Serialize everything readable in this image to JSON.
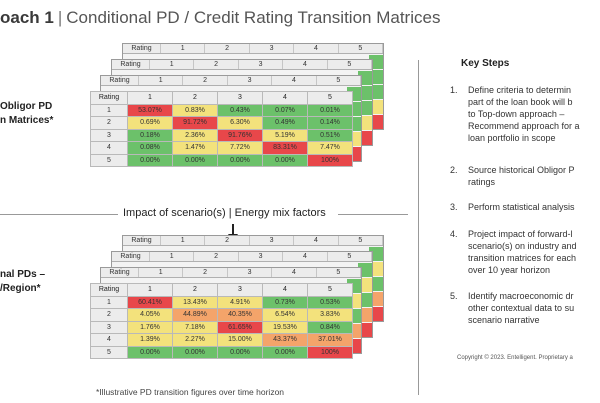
{
  "title": {
    "bold": "oach 1",
    "separator": "|",
    "rest": "Conditional PD / Credit Rating Transition Matrices"
  },
  "labels": {
    "top": "Obligor PD\nn Matrices*",
    "bottom": "nal PDs –\n/Region*"
  },
  "arrow_text": "Impact of scenario(s) | Energy mix factors",
  "footnote": "*Illustrative PD transition figures over time horizon",
  "key_steps": {
    "title": "Key Steps",
    "items": [
      {
        "num": "1.",
        "text": "Define criteria to determin\npart of the loan book will b\nto Top-down approach –\nRecommend approach for a\nloan portfolio in scope"
      },
      {
        "num": "2.",
        "text": "Source historical Obligor P\nratings"
      },
      {
        "num": "3.",
        "text": "Perform statistical analysis"
      },
      {
        "num": "4.",
        "text": "Project impact of forward-l\nscenario(s) on industry and\ntransition matrices for each\nover 10 year horizon"
      },
      {
        "num": "5.",
        "text": "Identify macroeconomic dr\nother contextual data to su\nscenario narrative"
      }
    ]
  },
  "copyright": "Copyright © 2023. Entelligent. Proprietary a",
  "matrix_header": [
    "Rating",
    "1",
    "2",
    "3",
    "4",
    "5"
  ],
  "colors": {
    "red": "#e8474a",
    "orange": "#f4a46a",
    "yellow": "#f3e27c",
    "green": "#6cc16a"
  },
  "top_matrix": [
    {
      "rating": "1",
      "cells": [
        {
          "v": "53.07%",
          "c": "red"
        },
        {
          "v": "0.83%",
          "c": "yellow"
        },
        {
          "v": "0.43%",
          "c": "green"
        },
        {
          "v": "0.07%",
          "c": "green"
        },
        {
          "v": "0.01%",
          "c": "green"
        }
      ]
    },
    {
      "rating": "2",
      "cells": [
        {
          "v": "0.69%",
          "c": "yellow"
        },
        {
          "v": "91.72%",
          "c": "red"
        },
        {
          "v": "6.30%",
          "c": "yellow"
        },
        {
          "v": "0.49%",
          "c": "green"
        },
        {
          "v": "0.14%",
          "c": "green"
        }
      ]
    },
    {
      "rating": "3",
      "cells": [
        {
          "v": "0.18%",
          "c": "green"
        },
        {
          "v": "2.36%",
          "c": "yellow"
        },
        {
          "v": "91.76%",
          "c": "red"
        },
        {
          "v": "5.19%",
          "c": "yellow"
        },
        {
          "v": "0.51%",
          "c": "green"
        }
      ]
    },
    {
      "rating": "4",
      "cells": [
        {
          "v": "0.08%",
          "c": "green"
        },
        {
          "v": "1.47%",
          "c": "yellow"
        },
        {
          "v": "7.72%",
          "c": "yellow"
        },
        {
          "v": "83.31%",
          "c": "red"
        },
        {
          "v": "7.47%",
          "c": "yellow"
        }
      ]
    },
    {
      "rating": "5",
      "cells": [
        {
          "v": "0.00%",
          "c": "green"
        },
        {
          "v": "0.00%",
          "c": "green"
        },
        {
          "v": "0.00%",
          "c": "green"
        },
        {
          "v": "0.00%",
          "c": "green"
        },
        {
          "v": "100%",
          "c": "red"
        }
      ]
    }
  ],
  "bottom_matrix": [
    {
      "rating": "1",
      "cells": [
        {
          "v": "60.41%",
          "c": "red"
        },
        {
          "v": "13.43%",
          "c": "yellow"
        },
        {
          "v": "4.91%",
          "c": "yellow"
        },
        {
          "v": "0.73%",
          "c": "green"
        },
        {
          "v": "0.53%",
          "c": "green"
        }
      ]
    },
    {
      "rating": "2",
      "cells": [
        {
          "v": "4.05%",
          "c": "yellow"
        },
        {
          "v": "44.89%",
          "c": "orange"
        },
        {
          "v": "40.35%",
          "c": "orange"
        },
        {
          "v": "6.54%",
          "c": "yellow"
        },
        {
          "v": "3.83%",
          "c": "yellow"
        }
      ]
    },
    {
      "rating": "3",
      "cells": [
        {
          "v": "1.76%",
          "c": "yellow"
        },
        {
          "v": "7.18%",
          "c": "yellow"
        },
        {
          "v": "61.65%",
          "c": "red"
        },
        {
          "v": "19.53%",
          "c": "yellow"
        },
        {
          "v": "0.84%",
          "c": "green"
        }
      ]
    },
    {
      "rating": "4",
      "cells": [
        {
          "v": "1.39%",
          "c": "yellow"
        },
        {
          "v": "2.27%",
          "c": "yellow"
        },
        {
          "v": "15.00%",
          "c": "yellow"
        },
        {
          "v": "43.37%",
          "c": "orange"
        },
        {
          "v": "37.01%",
          "c": "orange"
        }
      ]
    },
    {
      "rating": "5",
      "cells": [
        {
          "v": "0.00%",
          "c": "green"
        },
        {
          "v": "0.00%",
          "c": "green"
        },
        {
          "v": "0.00%",
          "c": "green"
        },
        {
          "v": "0.00%",
          "c": "green"
        },
        {
          "v": "100%",
          "c": "red"
        }
      ]
    }
  ]
}
